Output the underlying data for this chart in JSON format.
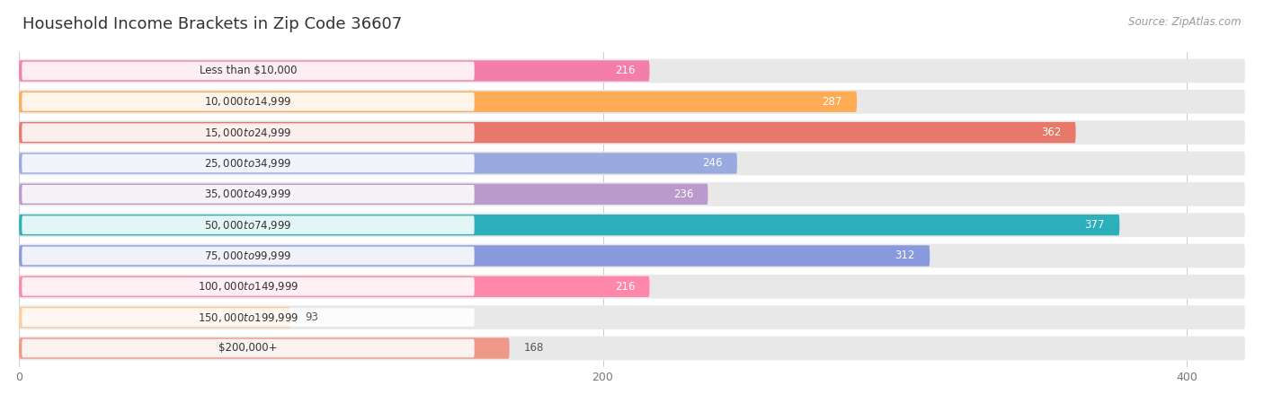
{
  "title": "Household Income Brackets in Zip Code 36607",
  "source": "Source: ZipAtlas.com",
  "categories": [
    "Less than $10,000",
    "$10,000 to $14,999",
    "$15,000 to $24,999",
    "$25,000 to $34,999",
    "$35,000 to $49,999",
    "$50,000 to $74,999",
    "$75,000 to $99,999",
    "$100,000 to $149,999",
    "$150,000 to $199,999",
    "$200,000+"
  ],
  "values": [
    216,
    287,
    362,
    246,
    236,
    377,
    312,
    216,
    93,
    168
  ],
  "bar_colors": [
    "#F47EAA",
    "#FFAA55",
    "#E8786A",
    "#9AAAE0",
    "#BB99CC",
    "#2BAFBB",
    "#8899DD",
    "#FF88AA",
    "#FFCC99",
    "#EE9988"
  ],
  "label_inside_color": "#ffffff",
  "label_outside_color": "#555555",
  "inside_threshold": 60,
  "xlim": [
    0,
    420
  ],
  "xticks": [
    0,
    200,
    400
  ],
  "bar_bg_color": "#e8e8e8",
  "title_fontsize": 13,
  "source_fontsize": 8.5,
  "cat_label_fontsize": 8.5,
  "val_label_fontsize": 8.5
}
